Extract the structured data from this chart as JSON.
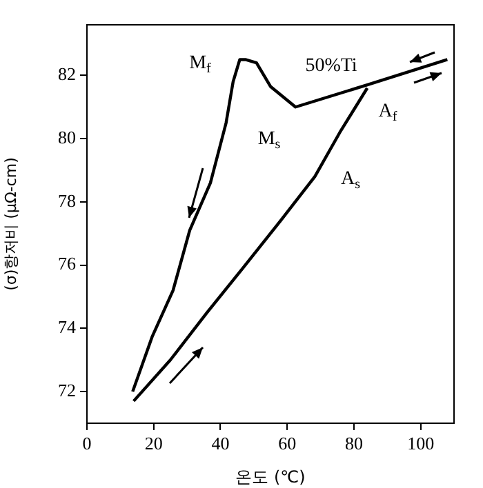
{
  "chart_data": {
    "type": "line",
    "xlabel": "온도 (℃)",
    "ylabel": "(σ)항저비 (μΩ-cm)",
    "xlim": [
      0,
      110
    ],
    "ylim": [
      71,
      83.6
    ],
    "xticks": [
      0,
      20,
      40,
      60,
      80,
      100
    ],
    "yticks": [
      72,
      74,
      76,
      78,
      80,
      82
    ],
    "grid": false,
    "legend": false,
    "marker": "none",
    "line_style": "solid",
    "series": [
      {
        "color": "#000000",
        "x": [
          13.7,
          19.6,
          25.8,
          30.8,
          37,
          41.7,
          43.8,
          45.8,
          47.5,
          50.8,
          55,
          62.5,
          84,
          108
        ],
        "values": [
          72,
          73.75,
          75.2,
          77.1,
          78.6,
          80.5,
          81.8,
          82.5,
          82.5,
          82.4,
          81.65,
          81,
          81.7,
          82.5
        ]
      },
      {
        "color": "#000000",
        "x": [
          14,
          25,
          36,
          46.7,
          58,
          68.3,
          75.8,
          84
        ],
        "values": [
          71.7,
          73,
          74.5,
          75.9,
          77.4,
          78.8,
          80.2,
          81.6
        ]
      }
    ],
    "annotations": [
      "M$_{f}$",
      "M$_{s}$",
      "50%Ti",
      "A$_{f}$",
      "A$_{s}$"
    ]
  }
}
